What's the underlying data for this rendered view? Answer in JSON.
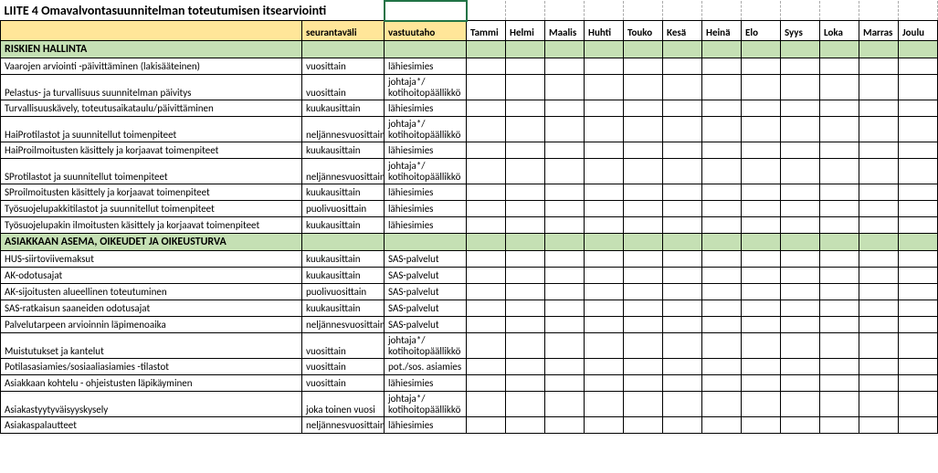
{
  "title": "LIITE 4 Omavalvontasuunnitelman toteutumisen itsearviointi",
  "columns": {
    "seurantavali": "seurantaväli",
    "vastuutaho": "vastuutaho",
    "months": [
      "Tammi",
      "Helmi",
      "Maalis",
      "Huhti",
      "Touko",
      "Kesä",
      "Heinä",
      "Elo",
      "Syys",
      "Loka",
      "Marras",
      "Joulu"
    ]
  },
  "sections": [
    {
      "name": "RISKIEN HALLINTA",
      "rows": [
        {
          "desc": "Vaarojen arviointi -päivittäminen (lakisääteinen)",
          "seur": "vuosittain",
          "vast": "lähiesimies",
          "tall": false
        },
        {
          "desc": "Pelastus- ja turvallisuus suunnitelman päivitys",
          "seur": "vuosittain",
          "vast": "johtaja*/ kotihoitopäällikkö",
          "tall": true
        },
        {
          "desc": "Turvallisuuskävely, toteutusaikataulu/päivittäminen",
          "seur": "kuukausittain",
          "vast": "lähiesimies",
          "tall": false
        },
        {
          "desc": "HaiProtilastot ja suunnitellut toimenpiteet",
          "seur": "neljännesvuosittain",
          "vast": "johtaja*/ kotihoitopäällikkö",
          "tall": true
        },
        {
          "desc": "HaiProilmoitusten käsittely ja korjaavat toimenpiteet",
          "seur": "kuukausittain",
          "vast": "lähiesimies",
          "tall": false
        },
        {
          "desc": "SProtilastot ja suunnitellut toimenpiteet",
          "seur": "neljännesvuosittain",
          "vast": "johtaja*/ kotihoitopäällikkö",
          "tall": true
        },
        {
          "desc": "SProilmoitusten käsittely ja korjaavat toimenpiteet",
          "seur": "kuukausittain",
          "vast": "lähiesimies",
          "tall": false
        },
        {
          "desc": "Työsuojelupakkitilastot ja suunnitellut toimenpiteet",
          "seur": "puolivuosittain",
          "vast": "lähiesimies",
          "tall": false
        },
        {
          "desc": "Työsuojelupakin ilmoitusten käsittely ja korjaavat toimenpiteet",
          "seur": "kuukausittain",
          "vast": "lähiesimies",
          "tall": false
        }
      ]
    },
    {
      "name": "ASIAKKAAN ASEMA, OIKEUDET JA OIKEUSTURVA",
      "rows": [
        {
          "desc": "HUS-siirtoviivemaksut",
          "seur": "kuukausittain",
          "vast": "SAS-palvelut",
          "tall": false
        },
        {
          "desc": "AK-odotusajat",
          "seur": "kuukausittain",
          "vast": "SAS-palvelut",
          "tall": false
        },
        {
          "desc": "AK-sijoitusten alueellinen toteutuminen",
          "seur": "puolivuosittain",
          "vast": "SAS-palvelut",
          "tall": false
        },
        {
          "desc": "SAS-ratkaisun saaneiden odotusajat",
          "seur": "kuukausittain",
          "vast": "SAS-palvelut",
          "tall": false
        },
        {
          "desc": "Palvelutarpeen arvioinnin läpimenoaika",
          "seur": "neljännesvuosittain",
          "vast": "SAS-palvelut",
          "tall": false
        },
        {
          "desc": "Muistutukset ja kantelut",
          "seur": "vuosittain",
          "vast": "johtaja*/ kotihoitopäällikkö",
          "tall": true
        },
        {
          "desc": "Potilasasiamies/sosiaaliasiamies -tilastot",
          "seur": "vuosittain",
          "vast": "pot./sos. asiamies",
          "tall": false
        },
        {
          "desc": "Asiakkaan kohtelu - ohjeistusten läpikäyminen",
          "seur": "vuosittain",
          "vast": "lähiesimies",
          "tall": false
        },
        {
          "desc": "Asiakastyytyväisyyskysely",
          "seur": "joka toinen vuosi",
          "vast": "johtaja*/ kotihoitopäällikkö",
          "tall": true
        },
        {
          "desc": "Asiakaspalautteet",
          "seur": "neljännesvuosittain",
          "vast": "lähiesimies",
          "tall": false
        }
      ]
    }
  ],
  "colors": {
    "header_bg": "#ffe699",
    "section_bg": "#c5e0b4",
    "active_border": "#217346"
  }
}
